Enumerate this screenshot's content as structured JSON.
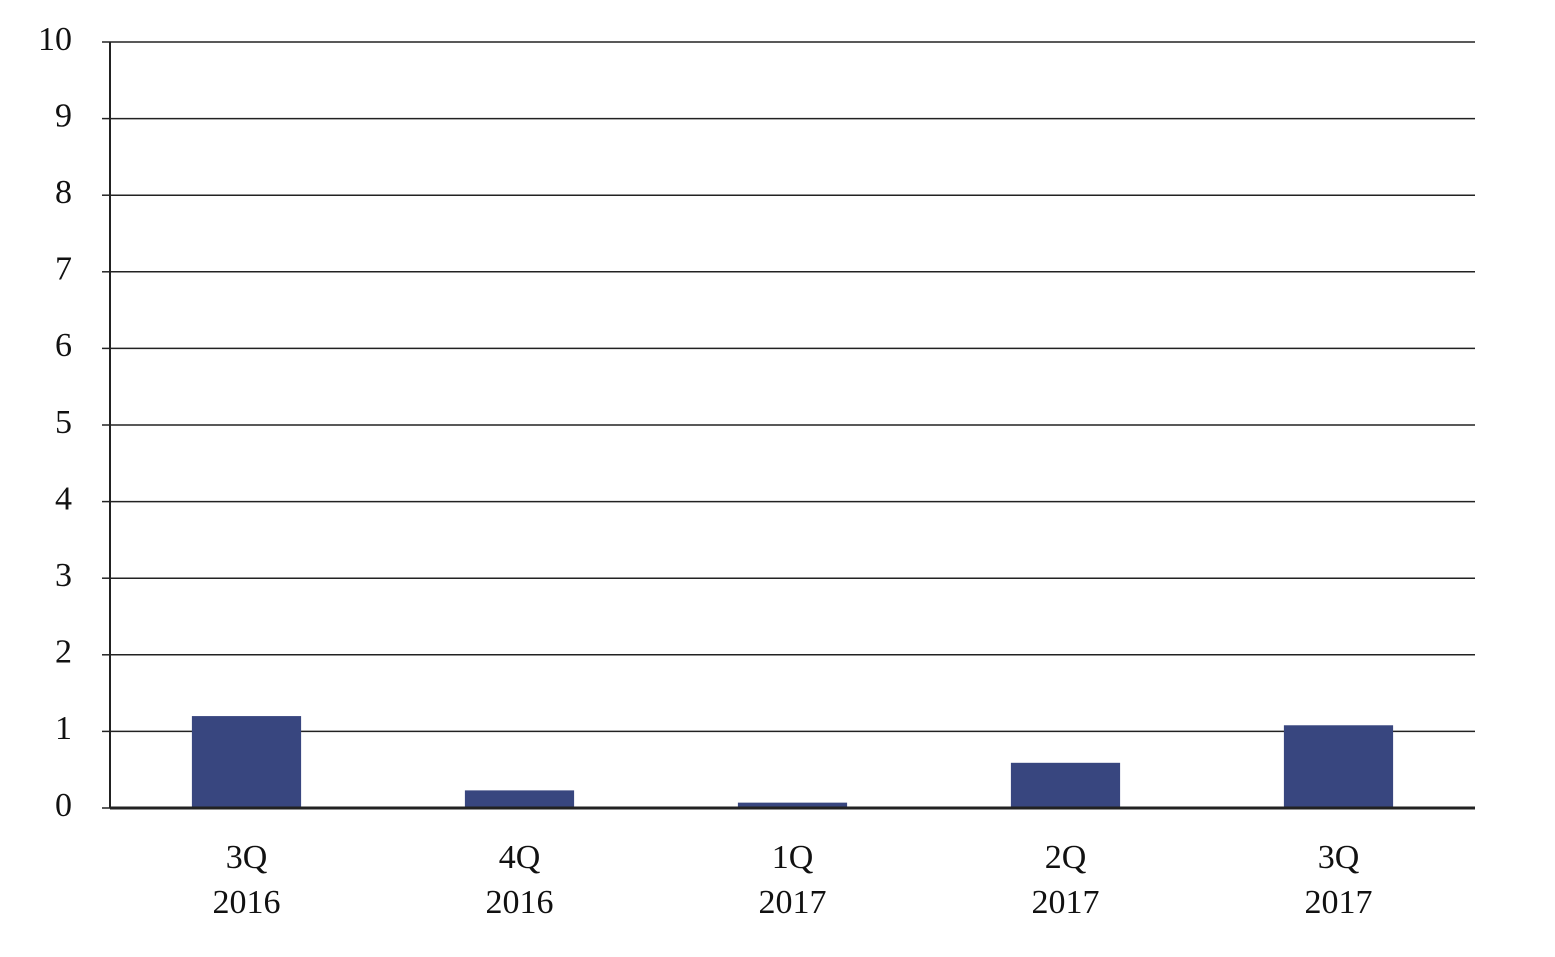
{
  "chart_data": {
    "type": "bar",
    "categories": [
      [
        "3Q",
        "2016"
      ],
      [
        "4Q",
        "2016"
      ],
      [
        "1Q",
        "2017"
      ],
      [
        "2Q",
        "2017"
      ],
      [
        "3Q",
        "2017"
      ]
    ],
    "values": [
      1.2,
      0.23,
      0.07,
      0.59,
      1.08
    ],
    "color": "#38467f",
    "ylim": [
      0,
      10
    ],
    "yticks": [
      0,
      1,
      2,
      3,
      4,
      5,
      6,
      7,
      8,
      9,
      10
    ],
    "grid": true
  }
}
